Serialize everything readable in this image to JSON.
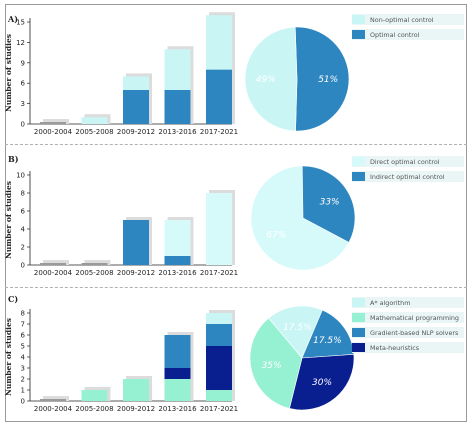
{
  "colors": {
    "non_optimal": "#c9f5f5",
    "optimal": "#2e86c1",
    "direct": "#d6fafa",
    "indirect": "#2e86c1",
    "astar": "#c9f5f5",
    "math_prog": "#96f0d2",
    "gradient_nlp": "#2e86c1",
    "metaheur": "#0a1f8f",
    "legend_bg": "#eaf6f6"
  },
  "chart_data": [
    {
      "panel": "A)",
      "type": "bar",
      "stacked": true,
      "ylabel": "Number of studies",
      "categories": [
        "2000-2004",
        "2005-2008",
        "2009-2012",
        "2013-2016",
        "2017-2021"
      ],
      "ylim": [
        0,
        15
      ],
      "yticks": [
        0,
        3,
        6,
        9,
        12,
        15
      ],
      "series": [
        {
          "name": "Optimal control",
          "color_key": "optimal",
          "values": [
            0,
            0,
            5,
            5,
            8
          ]
        },
        {
          "name": "Non-optimal control",
          "color_key": "non_optimal",
          "values": [
            0,
            1,
            2,
            6,
            8
          ]
        }
      ],
      "pie": {
        "slices": [
          {
            "name": "Non-optimal control",
            "value": 49,
            "label": "49%",
            "color_key": "non_optimal",
            "text_color": "#ffffff"
          },
          {
            "name": "Optimal control",
            "value": 51,
            "label": "51%",
            "color_key": "optimal",
            "text_color": "#ffffff"
          }
        ]
      },
      "legend": [
        "Non-optimal control",
        "Optimal control"
      ]
    },
    {
      "panel": "B)",
      "type": "bar",
      "stacked": true,
      "ylabel": "Number of studies",
      "categories": [
        "2000-2004",
        "2005-2008",
        "2009-2012",
        "2013-2016",
        "2017-2021"
      ],
      "ylim": [
        0,
        10
      ],
      "yticks": [
        0,
        2,
        4,
        6,
        8,
        10
      ],
      "series": [
        {
          "name": "Indirect optimal control",
          "color_key": "indirect",
          "values": [
            0,
            0,
            5,
            1,
            0
          ]
        },
        {
          "name": "Direct optimal control",
          "color_key": "direct",
          "values": [
            0,
            0,
            0,
            4,
            8
          ]
        }
      ],
      "pie": {
        "slices": [
          {
            "name": "Direct optimal control",
            "value": 67,
            "label": "67%",
            "color_key": "direct",
            "text_color": "#ffffff"
          },
          {
            "name": "Indirect optimal control",
            "value": 33,
            "label": "33%",
            "color_key": "indirect",
            "text_color": "#ffffff"
          }
        ]
      },
      "legend": [
        "Direct optimal control",
        "Indirect optimal control"
      ]
    },
    {
      "panel": "C)",
      "type": "bar",
      "stacked": true,
      "ylabel": "Number of studies",
      "categories": [
        "2000-2004",
        "2005-2008",
        "2009-2012",
        "2013-2016",
        "2017-2021"
      ],
      "ylim": [
        0,
        8
      ],
      "yticks": [
        0,
        1,
        2,
        3,
        4,
        5,
        6,
        7,
        8
      ],
      "series": [
        {
          "name": "Mathematical programming",
          "color_key": "math_prog",
          "values": [
            0,
            1,
            2,
            2,
            1
          ]
        },
        {
          "name": "Meta-heuristics",
          "color_key": "metaheur",
          "values": [
            0,
            0,
            0,
            1,
            4
          ]
        },
        {
          "name": "Gradient-based NLP solvers",
          "color_key": "gradient_nlp",
          "values": [
            0,
            0,
            0,
            3,
            2
          ]
        },
        {
          "name": "A* algorithm",
          "color_key": "astar",
          "values": [
            0,
            0,
            0,
            0,
            1
          ]
        }
      ],
      "pie": {
        "slices": [
          {
            "name": "A* algorithm",
            "value": 17.5,
            "label": "17.5%",
            "color_key": "astar",
            "text_color": "#ffffff"
          },
          {
            "name": "Gradient-based NLP solvers",
            "value": 17.5,
            "label": "17.5%",
            "color_key": "gradient_nlp",
            "text_color": "#ffffff"
          },
          {
            "name": "Meta-heuristics",
            "value": 30,
            "label": "30%",
            "color_key": "metaheur",
            "text_color": "#ffffff"
          },
          {
            "name": "Mathematical programming",
            "value": 35,
            "label": "35%",
            "color_key": "math_prog",
            "text_color": "#ffffff"
          }
        ]
      },
      "legend": [
        "A* algorithm",
        "Mathematical programming",
        "Gradient-based NLP solvers",
        "Meta-heuristics"
      ]
    }
  ]
}
